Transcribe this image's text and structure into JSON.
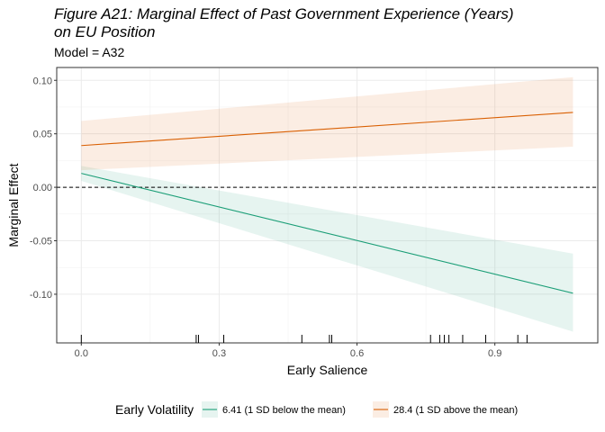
{
  "chart_data": {
    "type": "line",
    "title_line1": "Figure A21: Marginal Effect of Past Government Experience (Years)",
    "title_line2": "on EU Position",
    "subtitle": "Model = A32",
    "xlabel": "Early Salience",
    "ylabel": "Marginal Effect",
    "xlim": [
      -0.0535,
      1.124
    ],
    "ylim": [
      -0.1455,
      0.112
    ],
    "x_ticks": [
      {
        "value": 0.0,
        "label": "0.0"
      },
      {
        "value": 0.3,
        "label": "0.3"
      },
      {
        "value": 0.6,
        "label": "0.6"
      },
      {
        "value": 0.9,
        "label": "0.9"
      }
    ],
    "y_ticks": [
      {
        "value": 0.1,
        "label": "0.10"
      },
      {
        "value": 0.05,
        "label": "0.05"
      },
      {
        "value": 0.0,
        "label": "0.00"
      },
      {
        "value": -0.05,
        "label": "-0.05"
      },
      {
        "value": -0.1,
        "label": "-0.10"
      }
    ],
    "reference_line": 0.0,
    "grid": true,
    "legend_position": "bottom",
    "legend_title": "Early Volatility",
    "series": [
      {
        "name": "6.41 (1 SD below the mean)",
        "color": "#1b9e77",
        "x": [
          0.0,
          1.07
        ],
        "y": [
          0.013,
          -0.099
        ],
        "lower": [
          0.006,
          -0.135
        ],
        "upper": [
          0.02,
          -0.062
        ]
      },
      {
        "name": "28.4 (1 SD above the mean)",
        "color": "#d95f02",
        "x": [
          0.0,
          1.07
        ],
        "y": [
          0.039,
          0.07
        ],
        "lower": [
          0.016,
          0.038
        ],
        "upper": [
          0.062,
          0.103
        ]
      }
    ],
    "rug": [
      0.0,
      0.25,
      0.255,
      0.31,
      0.48,
      0.54,
      0.545,
      0.76,
      0.78,
      0.79,
      0.8,
      0.83,
      0.88,
      0.95,
      0.97
    ]
  }
}
